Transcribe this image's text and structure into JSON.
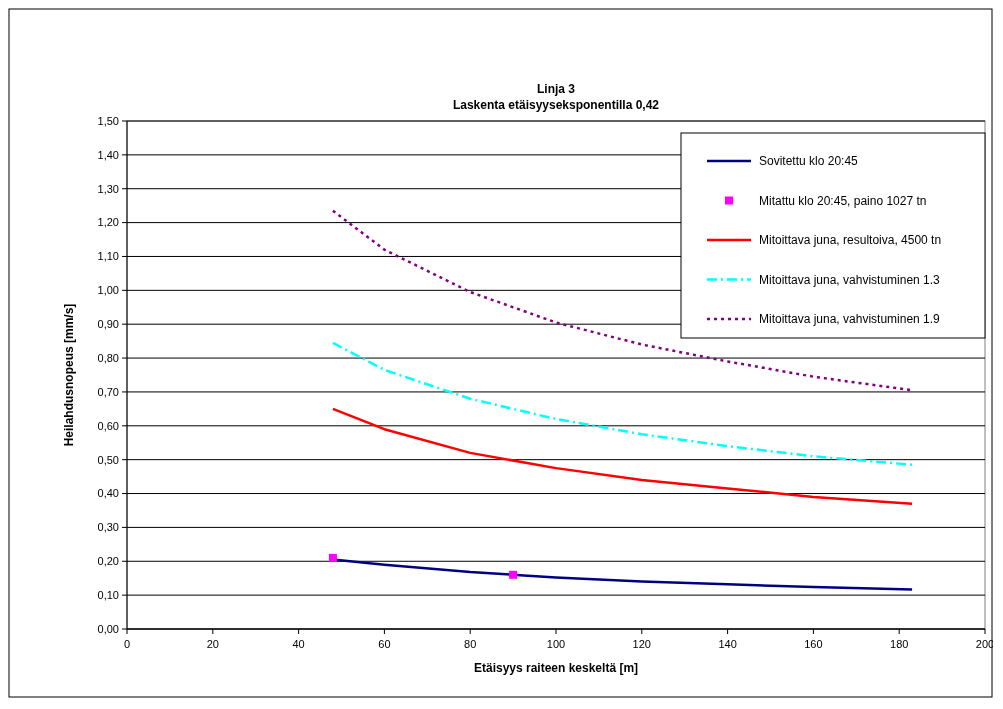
{
  "chart_data": {
    "type": "line",
    "title": "Linja 3",
    "subtitle": "Laskenta etäisyyseksponentilla 0,42",
    "xlabel": "Etäisyys raiteen keskeltä [m]",
    "ylabel": "Heilahdusnopeus [mm/s]",
    "xlim": [
      0,
      200
    ],
    "xticks": [
      0,
      20,
      40,
      60,
      80,
      100,
      120,
      140,
      160,
      180,
      200
    ],
    "ylim": [
      0,
      1.5
    ],
    "yticks": [
      {
        "value": 0,
        "label": "0,00"
      },
      {
        "value": 0.1,
        "label": "0,10"
      },
      {
        "value": 0.2,
        "label": "0,20"
      },
      {
        "value": 0.3,
        "label": "0,30"
      },
      {
        "value": 0.4,
        "label": "0,40"
      },
      {
        "value": 0.5,
        "label": "0,50"
      },
      {
        "value": 0.6,
        "label": "0,60"
      },
      {
        "value": 0.7,
        "label": "0,70"
      },
      {
        "value": 0.8,
        "label": "0,80"
      },
      {
        "value": 0.9,
        "label": "0,90"
      },
      {
        "value": 1.0,
        "label": "1,00"
      },
      {
        "value": 1.1,
        "label": "1,10"
      },
      {
        "value": 1.2,
        "label": "1,20"
      },
      {
        "value": 1.3,
        "label": "1,30"
      },
      {
        "value": 1.4,
        "label": "1,40"
      },
      {
        "value": 1.5,
        "label": "1,50"
      }
    ],
    "grid": "y",
    "legend": "top right",
    "series": [
      {
        "name": "Sovitettu klo 20:45",
        "color": "#000080",
        "line_style": "solid",
        "x": [
          48,
          60,
          80,
          100,
          120,
          140,
          160,
          183
        ],
        "values": [
          0.205,
          0.19,
          0.168,
          0.152,
          0.14,
          0.132,
          0.124,
          0.117
        ]
      },
      {
        "name": "Mitattu klo 20:45, paino 1027 tn",
        "type": "scatter",
        "marker": "square",
        "color": "#ff00ff",
        "x": [
          48,
          90
        ],
        "values": [
          0.21,
          0.16
        ]
      },
      {
        "name": "Mitoittava juna, resultoiva, 4500 tn",
        "color": "#ff0000",
        "line_style": "solid",
        "x": [
          48,
          60,
          80,
          100,
          120,
          140,
          160,
          183
        ],
        "values": [
          0.65,
          0.59,
          0.52,
          0.475,
          0.44,
          0.415,
          0.39,
          0.37
        ]
      },
      {
        "name": "Mitoittava juna, vahvistuminen 1.3",
        "color": "#00ffff",
        "line_style": "dashed",
        "x": [
          48,
          60,
          80,
          100,
          120,
          140,
          160,
          183
        ],
        "values": [
          0.845,
          0.765,
          0.68,
          0.62,
          0.575,
          0.54,
          0.51,
          0.485
        ]
      },
      {
        "name": "Mitoittava juna, vahvistuminen 1.9",
        "color": "#800080",
        "line_style": "dotted",
        "x": [
          48,
          60,
          80,
          100,
          120,
          140,
          160,
          183
        ],
        "values": [
          1.235,
          1.12,
          0.995,
          0.905,
          0.84,
          0.79,
          0.745,
          0.705
        ]
      }
    ]
  }
}
